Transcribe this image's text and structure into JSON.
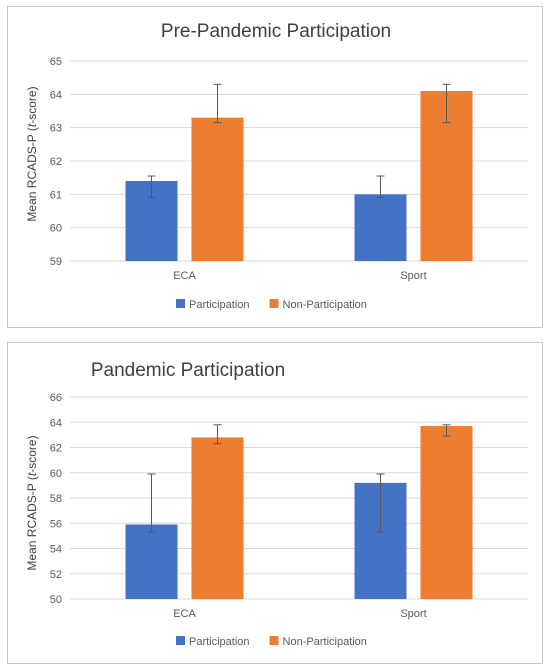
{
  "chart_data": [
    {
      "type": "bar",
      "title": "Pre-Pandemic Participation",
      "ylabel_prefix": "Mean RCADS-P (",
      "ylabel_italic": "t",
      "ylabel_suffix": "-score)",
      "categories": [
        "ECA",
        "Sport"
      ],
      "ylim": [
        59,
        65
      ],
      "yticks": [
        "59",
        "60",
        "61",
        "62",
        "63",
        "64",
        "65"
      ],
      "grid": true,
      "legend_position": "bottom",
      "series": [
        {
          "name": "Participation",
          "color": "#4472c4",
          "values": [
            61.4,
            61.0
          ],
          "error_low": [
            60.9,
            60.9
          ],
          "error_high": [
            61.55,
            61.55
          ]
        },
        {
          "name": "Non-Participation",
          "color": "#ed7d31",
          "values": [
            63.3,
            64.1
          ],
          "error_low": [
            63.15,
            63.15
          ],
          "error_high": [
            64.3,
            64.3
          ]
        }
      ]
    },
    {
      "type": "bar",
      "title": "Pandemic Participation",
      "ylabel_prefix": "Mean RCADS-P (",
      "ylabel_italic": "t",
      "ylabel_suffix": "-score)",
      "categories": [
        "ECA",
        "Sport"
      ],
      "ylim": [
        50,
        66
      ],
      "yticks": [
        "50",
        "52",
        "54",
        "56",
        "58",
        "60",
        "62",
        "64",
        "66"
      ],
      "grid": true,
      "legend_position": "bottom",
      "series": [
        {
          "name": "Participation",
          "color": "#4472c4",
          "values": [
            55.9,
            59.2
          ],
          "error_low": [
            55.3,
            55.3
          ],
          "error_high": [
            59.9,
            59.9
          ]
        },
        {
          "name": "Non-Participation",
          "color": "#ed7d31",
          "values": [
            62.8,
            63.7
          ],
          "error_low": [
            62.3,
            62.9
          ],
          "error_high": [
            63.8,
            63.8
          ]
        }
      ]
    }
  ]
}
